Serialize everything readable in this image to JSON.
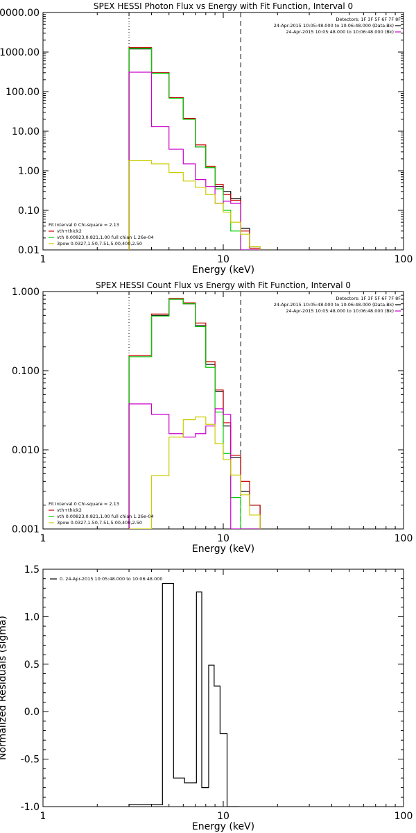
{
  "chart_data": [
    {
      "type": "line",
      "title": "SPEX HESSI Photon Flux vs Energy with Fit Function, Interval 0",
      "xlabel": "Energy (keV)",
      "ylabel": "",
      "xscale": "log",
      "yscale": "log",
      "xlim": [
        1,
        100
      ],
      "ylim": [
        0.01,
        10000
      ],
      "x_ticks": [
        {
          "v": 1,
          "label": "1"
        },
        {
          "v": 10,
          "label": "10"
        },
        {
          "v": 100,
          "label": "100"
        }
      ],
      "y_ticks": [
        {
          "v": 0.01,
          "label": "0.01"
        },
        {
          "v": 0.1,
          "label": "0.10"
        },
        {
          "v": 1,
          "label": "1.00"
        },
        {
          "v": 10,
          "label": "10.00"
        },
        {
          "v": 100,
          "label": "100.00"
        },
        {
          "v": 1000,
          "label": "1000.00"
        },
        {
          "v": 10000,
          "label": "10000.00"
        }
      ],
      "vlines": [
        {
          "x": 3.0,
          "style": "dotted"
        },
        {
          "x": 12.5,
          "style": "dashed"
        }
      ],
      "header_lines": [
        {
          "text": "Detectors: 1F 3F 5F 6F 7F 8F",
          "color": ""
        },
        {
          "text": "24-Apr-2015 10:05:48.000 to 10:06:48.000 (Data-Bk)",
          "color": "#000000"
        },
        {
          "text": "24-Apr-2015 10:05:48.000 to 10:06:48.000 (Bk)",
          "color": "#cc00cc"
        }
      ],
      "legend_title": "Fit Interval 0   Chi-square = 2.13",
      "legend": [
        {
          "text": "vth+thick2",
          "color": "#cc0000"
        },
        {
          "text": "vth 0.00823,0.821,1.00   full chian 1.26e-04",
          "color": "#00cc00"
        },
        {
          "text": "3pow 0.0327,1.50,7.51,5.00,400,2.50",
          "color": "#cccc00"
        }
      ],
      "edges": [
        3.0,
        4.0,
        5.0,
        6.0,
        7.0,
        8.0,
        9.0,
        10.0,
        11.0,
        12.5,
        14.0,
        16.0
      ],
      "series": [
        {
          "name": "",
          "color": "#000000",
          "values": [
            1200,
            300,
            70,
            20,
            4.0,
            1.2,
            0.4,
            0.3,
            0.2,
            0.035,
            0.012
          ]
        },
        {
          "name": "",
          "color": "#cc0000",
          "values": [
            1300,
            300,
            70,
            21,
            4.5,
            1.3,
            0.45,
            0.25,
            0.18,
            0.03,
            0.011
          ]
        },
        {
          "name": "",
          "color": "#00cc00",
          "values": [
            1250,
            290,
            68,
            20,
            4.0,
            1.2,
            0.35,
            0.1,
            0.03,
            0.01,
            0.0
          ]
        },
        {
          "name": "",
          "color": "#cc00cc",
          "values": [
            310,
            13,
            3.5,
            1.5,
            0.6,
            0.4,
            0.15,
            0.17,
            0.15,
            0.0,
            0.0
          ]
        },
        {
          "name": "",
          "color": "#cccc00",
          "values": [
            1.8,
            1.5,
            0.9,
            0.55,
            0.38,
            0.25,
            0.15,
            0.09,
            0.05,
            0.025,
            0.012
          ]
        }
      ]
    },
    {
      "type": "line",
      "title": "SPEX HESSI Count Flux vs Energy with Fit Function, Interval 0",
      "xlabel": "Energy (keV)",
      "ylabel": "",
      "xscale": "log",
      "yscale": "log",
      "xlim": [
        1,
        100
      ],
      "ylim": [
        0.001,
        1
      ],
      "x_ticks": [
        {
          "v": 1,
          "label": "1"
        },
        {
          "v": 10,
          "label": "10"
        },
        {
          "v": 100,
          "label": "100"
        }
      ],
      "y_ticks": [
        {
          "v": 0.001,
          "label": "0.001"
        },
        {
          "v": 0.01,
          "label": "0.010"
        },
        {
          "v": 0.1,
          "label": "0.100"
        },
        {
          "v": 1,
          "label": "1.000"
        }
      ],
      "vlines": [
        {
          "x": 3.0,
          "style": "dotted"
        },
        {
          "x": 12.5,
          "style": "dashed"
        }
      ],
      "header_lines": [
        {
          "text": "Detectors: 1F 3F 5F 6F 7F 8F",
          "color": ""
        },
        {
          "text": "24-Apr-2015 10:05:48.000 to 10:06:48.000 (Data-Bk)",
          "color": "#000000"
        },
        {
          "text": "24-Apr-2015 10:05:48.000 to 10:06:48.000 (Bk)",
          "color": "#cc00cc"
        }
      ],
      "legend_title": "Fit Interval 0   Chi-square = 2.13",
      "legend": [
        {
          "text": "vth+thick2",
          "color": "#cc0000"
        },
        {
          "text": "vth 0.00823,0.821,1.00   full chian 1.26e-04",
          "color": "#00cc00"
        },
        {
          "text": "3pow 0.0327,1.50,7.51,5.00,400,2.50",
          "color": "#cccc00"
        }
      ],
      "edges": [
        3.0,
        4.0,
        5.0,
        6.0,
        7.0,
        8.0,
        9.0,
        10.0,
        11.0,
        12.5,
        14.0,
        16.0
      ],
      "series": [
        {
          "name": "",
          "color": "#000000",
          "values": [
            0.15,
            0.5,
            0.8,
            0.7,
            0.37,
            0.12,
            0.055,
            0.02,
            0.008,
            0.003,
            0.002
          ]
        },
        {
          "name": "",
          "color": "#cc0000",
          "values": [
            0.155,
            0.52,
            0.82,
            0.72,
            0.4,
            0.13,
            0.057,
            0.022,
            0.0085,
            0.004,
            0.002
          ]
        },
        {
          "name": "",
          "color": "#00cc00",
          "values": [
            0.15,
            0.49,
            0.8,
            0.7,
            0.36,
            0.11,
            0.03,
            0.009,
            0.0025,
            0.001,
            0.0
          ]
        },
        {
          "name": "",
          "color": "#cc00cc",
          "values": [
            0.038,
            0.028,
            0.016,
            0.0145,
            0.016,
            0.02,
            0.033,
            0.028,
            0.0,
            0.0,
            0.0
          ]
        },
        {
          "name": "",
          "color": "#cccc00",
          "values": [
            0.001,
            0.0047,
            0.0145,
            0.024,
            0.026,
            0.021,
            0.012,
            0.0075,
            0.0048,
            0.0027,
            0.0015
          ]
        }
      ]
    },
    {
      "type": "line",
      "title": "",
      "xlabel": "Energy (keV)",
      "ylabel": "Normalized Residuals (sigma)",
      "xscale": "log",
      "yscale": "linear",
      "xlim": [
        1,
        100
      ],
      "ylim": [
        -1.0,
        1.5
      ],
      "x_ticks": [
        {
          "v": 1,
          "label": "1"
        },
        {
          "v": 10,
          "label": "10"
        },
        {
          "v": 100,
          "label": "100"
        }
      ],
      "y_ticks": [
        {
          "v": -1.0,
          "label": "-1.0"
        },
        {
          "v": -0.5,
          "label": "-0.5"
        },
        {
          "v": 0.0,
          "label": "0.0"
        },
        {
          "v": 0.5,
          "label": "0.5"
        },
        {
          "v": 1.0,
          "label": "1.0"
        },
        {
          "v": 1.5,
          "label": "1.5"
        }
      ],
      "vlines": [],
      "header_lines": [],
      "legend_title": "",
      "legend": [
        {
          "text": "0. 24-Apr-2015 10:05:48.000 to 10:06:48.000",
          "color": "#000000"
        }
      ],
      "edges": [
        3.0,
        4.0,
        4.6,
        5.3,
        6.1,
        7.1,
        7.6,
        8.3,
        8.9,
        9.6,
        10.5,
        11.4,
        12.3
      ],
      "series": [
        {
          "name": "",
          "color": "#000000",
          "values": [
            -0.98,
            -0.98,
            1.35,
            -0.7,
            -0.75,
            1.26,
            -0.8,
            0.49,
            0.27,
            -0.23,
            -1.0,
            -1.0
          ]
        }
      ]
    }
  ]
}
